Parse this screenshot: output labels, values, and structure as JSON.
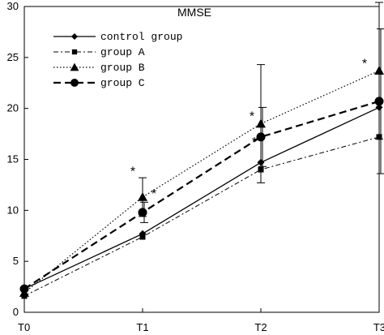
{
  "chart_data": {
    "type": "line",
    "title": "MMSE",
    "xlabel": "",
    "ylabel": "",
    "categories": [
      "T0",
      "T1",
      "T2",
      "T3"
    ],
    "ylim": [
      0,
      30
    ],
    "yticks": [
      "0",
      "5",
      "10",
      "15",
      "20",
      "25",
      "30"
    ],
    "grid": false,
    "legend_position": "top-left",
    "series": [
      {
        "name": "control group",
        "marker": "diamond",
        "dash": "solid",
        "values": [
          2.3,
          7.7,
          14.7,
          20.1
        ],
        "errors": [
          0,
          0,
          0,
          0
        ]
      },
      {
        "name": "group A",
        "marker": "square",
        "dash": "dash-dot",
        "values": [
          1.6,
          7.4,
          14.0,
          17.2
        ],
        "errors": [
          0,
          0,
          0,
          0
        ]
      },
      {
        "name": "group B",
        "marker": "triangle",
        "dash": "dotted",
        "values": [
          1.9,
          11.3,
          18.5,
          23.7
        ],
        "errors": [
          0,
          1.9,
          5.8,
          6.7
        ]
      },
      {
        "name": "group C",
        "marker": "circle",
        "dash": "dashed",
        "values": [
          2.3,
          9.8,
          17.2,
          20.7
        ],
        "errors": [
          0,
          1.0,
          2.9,
          7.1
        ]
      }
    ],
    "annotations": [
      {
        "text": "*",
        "x": "T1",
        "y": 14.2
      },
      {
        "text": "*",
        "x": "T1",
        "y": 12.0
      },
      {
        "text": "*",
        "x": "T2",
        "y": 19.6
      },
      {
        "text": "*",
        "x": "T2",
        "y": 17.1
      },
      {
        "text": "*",
        "x": "T3",
        "y": 24.8
      }
    ]
  }
}
